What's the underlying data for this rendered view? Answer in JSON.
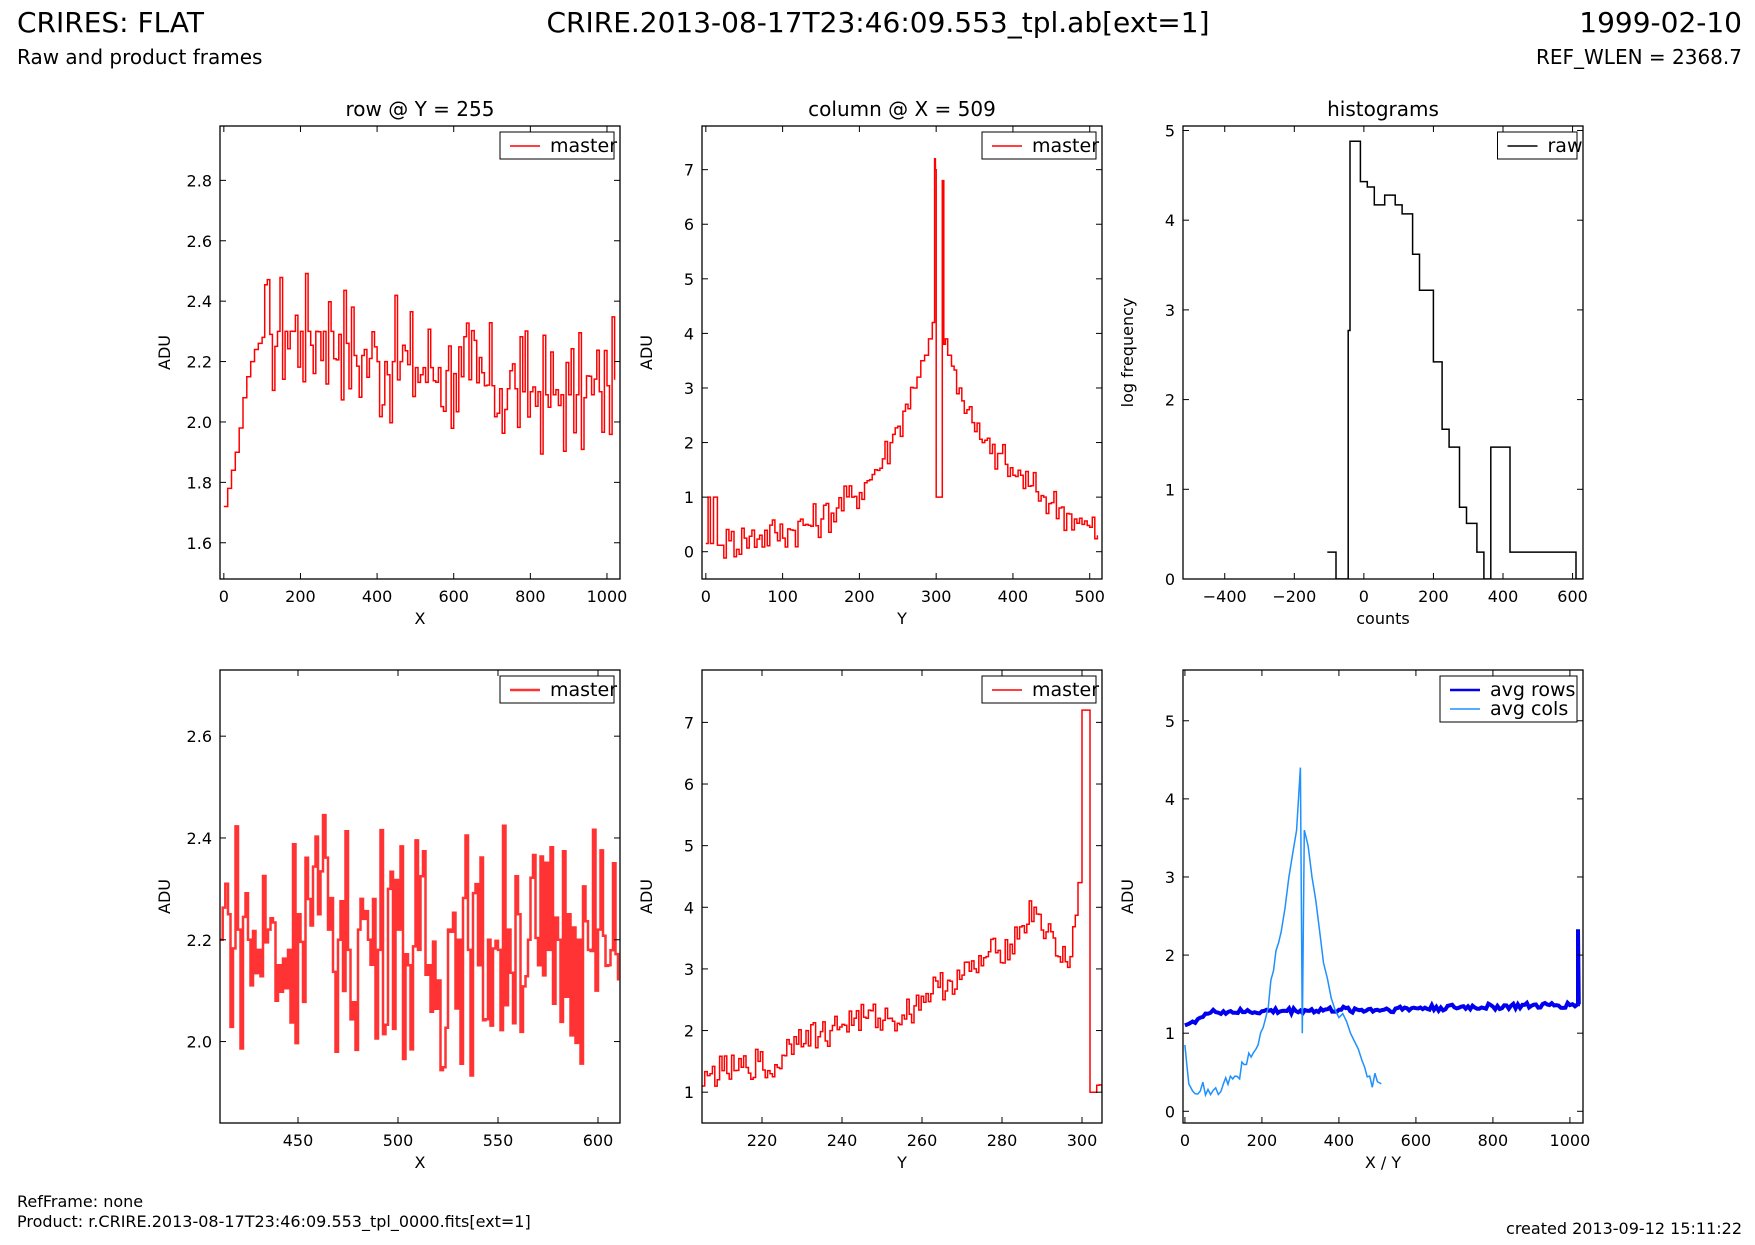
{
  "header": {
    "title": "CRIRES: FLAT",
    "subtitle": "Raw and product frames",
    "file": "CRIRE.2013-08-17T23:46:09.553_tpl.ab[ext=1]",
    "date": "1999-02-10",
    "ref_wlen": "REF_WLEN = 2368.7"
  },
  "footer": {
    "ref_frame": "RefFrame: none",
    "product": "Product: r.CRIRE.2013-08-17T23:46:09.553_tpl_0000.fits[ext=1]",
    "created": "created 2013-09-12 15:11:22"
  },
  "colors": {
    "red": "#ff0000",
    "red_light": "#ff3333",
    "black": "#000000",
    "blue": "#0000ee",
    "light_blue": "#1e90ff"
  },
  "chart_data": [
    {
      "type": "line",
      "title": "row @ Y = 255",
      "xlabel": "X",
      "ylabel": "ADU",
      "xlim": [
        -10,
        1034
      ],
      "ylim": [
        1.48,
        2.98
      ],
      "xticks": [
        0,
        200,
        400,
        600,
        800,
        1000
      ],
      "yticks": [
        1.6,
        1.8,
        2.0,
        2.2,
        2.4,
        2.6,
        2.8
      ],
      "grid": false,
      "legend": "top-right",
      "series": [
        {
          "name": "master",
          "color": "#ff0000",
          "step": true,
          "stroke": 1.5,
          "x": [
            0,
            10,
            20,
            30,
            40,
            50,
            60,
            70,
            80,
            90,
            100,
            120,
            140,
            160,
            180,
            200,
            220,
            240,
            260,
            280,
            300,
            320,
            340,
            360,
            380,
            400,
            420,
            440,
            460,
            480,
            500,
            520,
            540,
            560,
            580,
            600,
            620,
            640,
            660,
            680,
            700,
            720,
            740,
            760,
            780,
            800,
            820,
            840,
            860,
            880,
            900,
            920,
            940,
            960,
            980,
            1000,
            1020
          ],
          "y": [
            1.72,
            1.78,
            1.84,
            1.9,
            1.98,
            2.08,
            2.15,
            2.2,
            2.24,
            2.26,
            2.28,
            2.29,
            2.3,
            2.3,
            2.3,
            2.3,
            2.3,
            2.3,
            2.3,
            2.3,
            2.29,
            2.26,
            2.22,
            2.22,
            2.21,
            2.2,
            2.2,
            2.2,
            2.2,
            2.19,
            2.18,
            2.18,
            2.18,
            2.18,
            2.17,
            2.16,
            2.15,
            2.14,
            2.13,
            2.12,
            2.12,
            2.11,
            2.11,
            2.11,
            2.1,
            2.1,
            2.1,
            2.09,
            2.09,
            2.09,
            2.09,
            2.09,
            2.08,
            2.09,
            2.1,
            2.12,
            2.14
          ],
          "noise": 0.22
        }
      ]
    },
    {
      "type": "line",
      "title": "column @ X = 509",
      "xlabel": "Y",
      "ylabel": "ADU",
      "xlim": [
        -5,
        516
      ],
      "ylim": [
        -0.5,
        7.8
      ],
      "xticks": [
        0,
        100,
        200,
        300,
        400,
        500
      ],
      "yticks": [
        0,
        1,
        2,
        3,
        4,
        5,
        6,
        7
      ],
      "grid": false,
      "legend": "top-right",
      "series": [
        {
          "name": "master",
          "color": "#ff0000",
          "step": true,
          "stroke": 1.5,
          "x": [
            0,
            3,
            6,
            10,
            15,
            20,
            30,
            50,
            70,
            90,
            110,
            130,
            150,
            170,
            190,
            210,
            220,
            230,
            240,
            250,
            260,
            270,
            275,
            280,
            285,
            290,
            295,
            298,
            299,
            300,
            302,
            304,
            306,
            308,
            310,
            312,
            315,
            320,
            330,
            340,
            350,
            360,
            370,
            380,
            390,
            400,
            410,
            420,
            430,
            440,
            450,
            460,
            470,
            480,
            490,
            500,
            510
          ],
          "y": [
            0.15,
            1.0,
            0.15,
            1.0,
            0.12,
            0.12,
            0.2,
            0.25,
            0.3,
            0.35,
            0.4,
            0.5,
            0.6,
            0.8,
            1.0,
            1.3,
            1.5,
            1.7,
            2.0,
            2.3,
            2.7,
            3.0,
            3.2,
            3.5,
            3.6,
            3.9,
            4.2,
            7.2,
            7.0,
            1.0,
            1.0,
            1.0,
            1.0,
            6.8,
            3.8,
            3.9,
            3.6,
            3.4,
            3.0,
            2.6,
            2.2,
            2.0,
            1.8,
            1.8,
            1.6,
            1.4,
            1.4,
            1.2,
            1.1,
            1.0,
            0.9,
            0.8,
            0.7,
            0.6,
            0.5,
            0.45,
            0.3
          ],
          "noise": 0.35
        }
      ]
    },
    {
      "type": "line",
      "title": "histograms",
      "xlabel": "counts",
      "ylabel": "log frequency",
      "xlim": [
        -520,
        630
      ],
      "ylim": [
        0,
        5.05
      ],
      "xticks": [
        -400,
        -200,
        0,
        200,
        400,
        600
      ],
      "yticks": [
        0,
        1,
        2,
        3,
        4,
        5
      ],
      "xtick_labels": [
        "−400",
        "−200",
        "0",
        "200",
        "400",
        "600"
      ],
      "grid": false,
      "legend": "top-right",
      "series": [
        {
          "name": "raw",
          "color": "#000000",
          "step": true,
          "stroke": 1.5,
          "x": [
            -105,
            -80,
            -80,
            -45,
            -45,
            -40,
            -40,
            -10,
            -10,
            10,
            10,
            30,
            30,
            60,
            60,
            90,
            90,
            110,
            110,
            140,
            140,
            160,
            160,
            200,
            200,
            225,
            225,
            245,
            245,
            275,
            275,
            295,
            295,
            325,
            325,
            345,
            345,
            365,
            365,
            390,
            390,
            420,
            420,
            520,
            520,
            610,
            610,
            630
          ],
          "y": [
            0.3,
            0.3,
            0,
            0,
            2.77,
            2.77,
            4.88,
            4.88,
            4.43,
            4.43,
            4.37,
            4.37,
            4.17,
            4.17,
            4.28,
            4.28,
            4.17,
            4.17,
            4.07,
            4.07,
            3.62,
            3.62,
            3.22,
            3.22,
            2.42,
            2.42,
            1.67,
            1.67,
            1.47,
            1.47,
            0.8,
            0.8,
            0.62,
            0.62,
            0.3,
            0.3,
            0.0,
            0.0,
            1.47,
            1.47,
            1.47,
            1.47,
            0.3,
            0.3,
            0.3,
            0.3,
            0.0,
            0.0
          ],
          "noise": 0
        }
      ]
    },
    {
      "type": "line",
      "title": "",
      "xlabel": "X",
      "ylabel": "ADU",
      "xlim": [
        411,
        611
      ],
      "ylim": [
        1.84,
        2.73
      ],
      "xticks": [
        450,
        500,
        550,
        600
      ],
      "yticks": [
        2.0,
        2.2,
        2.4,
        2.6
      ],
      "grid": false,
      "legend": "top-right",
      "series": [
        {
          "name": "master",
          "color": "#ff3333",
          "step": true,
          "stroke": 2.5,
          "x": [
            411,
            415,
            420,
            425,
            430,
            435,
            440,
            445,
            450,
            455,
            460,
            465,
            470,
            475,
            480,
            485,
            490,
            495,
            500,
            505,
            510,
            515,
            520,
            525,
            530,
            535,
            540,
            545,
            550,
            555,
            560,
            565,
            570,
            575,
            580,
            585,
            590,
            595,
            600,
            605,
            610
          ],
          "y": [
            2.2,
            2.25,
            2.22,
            2.2,
            2.18,
            2.22,
            2.15,
            2.18,
            2.25,
            2.28,
            2.25,
            2.22,
            2.2,
            2.18,
            2.22,
            2.2,
            2.18,
            2.3,
            2.22,
            2.15,
            2.18,
            2.15,
            2.12,
            2.22,
            2.2,
            2.18,
            2.15,
            2.2,
            2.18,
            2.22,
            2.25,
            2.2,
            2.15,
            2.18,
            2.2,
            2.25,
            2.2,
            2.18,
            2.22,
            2.15,
            2.12
          ],
          "noise": 0.24
        }
      ]
    },
    {
      "type": "line",
      "title": "",
      "xlabel": "Y",
      "ylabel": "ADU",
      "xlim": [
        205,
        305
      ],
      "ylim": [
        0.5,
        7.85
      ],
      "xticks": [
        220,
        240,
        260,
        280,
        300
      ],
      "yticks": [
        1,
        2,
        3,
        4,
        5,
        6,
        7
      ],
      "grid": false,
      "legend": "top-right",
      "series": [
        {
          "name": "master",
          "color": "#ff0000",
          "step": true,
          "stroke": 1.5,
          "x": [
            205,
            207,
            210,
            213,
            216,
            219,
            222,
            225,
            228,
            231,
            234,
            237,
            240,
            243,
            246,
            249,
            252,
            255,
            258,
            261,
            264,
            267,
            270,
            273,
            276,
            279,
            282,
            285,
            288,
            291,
            294,
            297,
            299,
            300,
            301,
            302,
            303,
            305
          ],
          "y": [
            1.1,
            1.3,
            1.35,
            1.35,
            1.4,
            1.5,
            1.3,
            1.6,
            1.9,
            2.0,
            1.9,
            2.0,
            2.1,
            2.2,
            2.2,
            2.2,
            2.2,
            2.25,
            2.4,
            2.6,
            2.7,
            2.8,
            2.9,
            3.0,
            3.2,
            3.3,
            3.4,
            3.7,
            4.0,
            3.6,
            3.2,
            3.2,
            4.4,
            7.2,
            7.2,
            1.0,
            1.0,
            1.0
          ],
          "noise": 0.25
        }
      ]
    },
    {
      "type": "line",
      "title": "",
      "xlabel": "X / Y",
      "ylabel": "ADU",
      "xlim": [
        -5,
        1034
      ],
      "ylim": [
        -0.15,
        5.65
      ],
      "xticks": [
        0,
        200,
        400,
        600,
        800,
        1000
      ],
      "yticks": [
        0,
        1,
        2,
        3,
        4,
        5
      ],
      "grid": false,
      "legend": "top-right",
      "series": [
        {
          "name": "avg rows",
          "color": "#0000ee",
          "step": false,
          "stroke": 4,
          "x": [
            0,
            10,
            20,
            40,
            60,
            80,
            100,
            150,
            200,
            300,
            400,
            500,
            600,
            700,
            800,
            900,
            1000,
            1020,
            1021,
            1021,
            1023
          ],
          "y": [
            1.1,
            1.12,
            1.15,
            1.2,
            1.25,
            1.27,
            1.28,
            1.27,
            1.28,
            1.29,
            1.3,
            1.3,
            1.32,
            1.33,
            1.34,
            1.35,
            1.36,
            1.37,
            1.37,
            2.33,
            1.37
          ],
          "noise": 0.04
        },
        {
          "name": "avg cols",
          "color": "#1e90ff",
          "step": false,
          "stroke": 1.5,
          "x": [
            0,
            5,
            10,
            20,
            40,
            60,
            80,
            100,
            130,
            160,
            190,
            210,
            230,
            250,
            260,
            270,
            280,
            290,
            300,
            305,
            310,
            320,
            330,
            340,
            350,
            360,
            370,
            380,
            390,
            400,
            410,
            420,
            430,
            440,
            450,
            460,
            480,
            500,
            510
          ],
          "y": [
            0.85,
            0.6,
            0.35,
            0.26,
            0.26,
            0.28,
            0.3,
            0.35,
            0.45,
            0.6,
            0.85,
            1.2,
            1.8,
            2.3,
            2.6,
            3.0,
            3.3,
            3.6,
            4.4,
            1.0,
            3.6,
            3.4,
            3.0,
            2.7,
            2.3,
            1.9,
            1.7,
            1.45,
            1.3,
            1.2,
            1.25,
            1.15,
            1.0,
            0.9,
            0.8,
            0.65,
            0.45,
            0.38,
            0.35
          ],
          "noise": 0.12
        }
      ]
    }
  ]
}
